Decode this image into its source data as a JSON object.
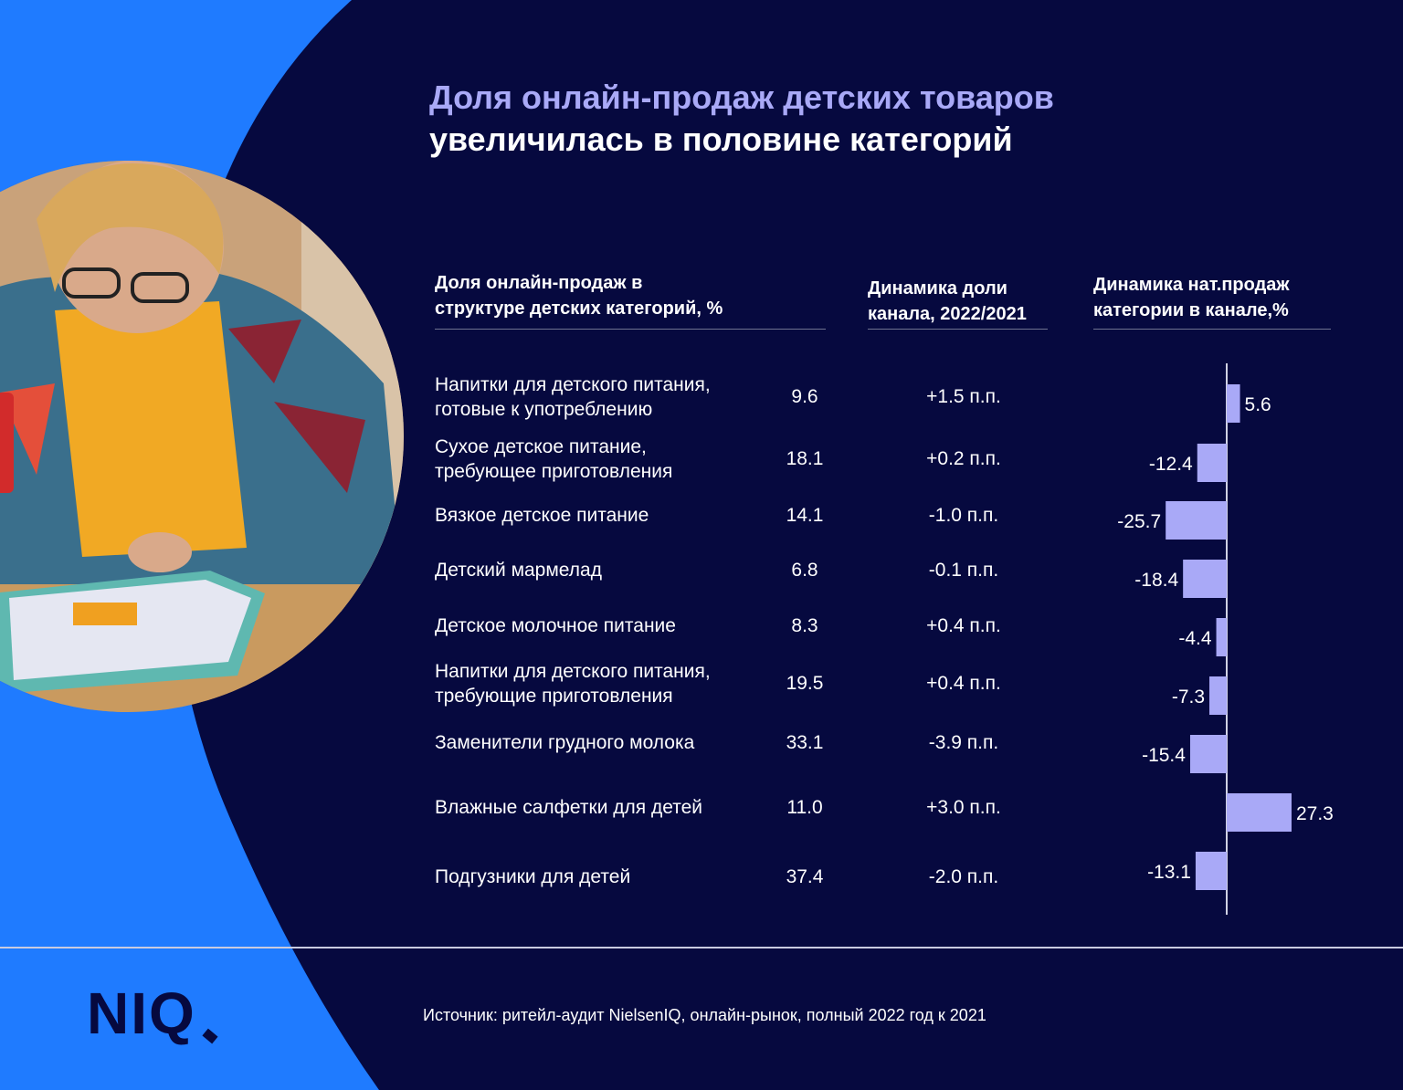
{
  "title": {
    "line1": "Доля онлайн-продаж детских товаров",
    "line2": "увеличилась в половине категорий"
  },
  "columns": {
    "share_header_line1": "Доля онлайн-продаж в",
    "share_header_line2": "структуре детских категорий, %",
    "dyn_header_line1": "Динамика доли",
    "dyn_header_line2": "канала, 2022/2021",
    "sales_header_line1": "Динамика нат.продаж",
    "sales_header_line2": "категории в канале,%"
  },
  "rows": [
    {
      "cat1": "Напитки для детского питания,",
      "cat2": "готовые к употреблению",
      "share": "9.6",
      "dyn": "+1.5 п.п."
    },
    {
      "cat1": "Сухое детское питание,",
      "cat2": "требующее приготовления",
      "share": "18.1",
      "dyn": "+0.2 п.п."
    },
    {
      "cat1": "Вязкое детское питание",
      "cat2": "",
      "share": "14.1",
      "dyn": "-1.0 п.п."
    },
    {
      "cat1": "Детский мармелад",
      "cat2": "",
      "share": "6.8",
      "dyn": "-0.1 п.п."
    },
    {
      "cat1": "Детское молочное питание",
      "cat2": "",
      "share": "8.3",
      "dyn": "+0.4 п.п."
    },
    {
      "cat1": "Напитки для детского питания,",
      "cat2": "требующие приготовления",
      "share": "19.5",
      "dyn": "+0.4 п.п."
    },
    {
      "cat1": "Заменители грудного молока",
      "cat2": "",
      "share": "33.1",
      "dyn": "-3.9  п.п."
    },
    {
      "cat1": "Влажные салфетки для детей",
      "cat2": "",
      "share": "11.0",
      "dyn": "+3.0 п.п."
    },
    {
      "cat1": "Подгузники для детей",
      "cat2": "",
      "share": "37.4",
      "dyn": "-2.0 п.п."
    }
  ],
  "chart_data": {
    "type": "bar",
    "orientation": "horizontal",
    "categories": [
      "Напитки для детского питания, готовые к употреблению",
      "Сухое детское питание, требующее приготовления",
      "Вязкое детское питание",
      "Детский мармелад",
      "Детское молочное питание",
      "Напитки для детского питания, требующие приготовления",
      "Заменители грудного молока",
      "Влажные салфетки для детей",
      "Подгузники для детей"
    ],
    "values": [
      5.6,
      -12.4,
      -25.7,
      -18.4,
      -4.4,
      -7.3,
      -15.4,
      27.3,
      -13.1
    ],
    "labels": [
      "5.6",
      "-12.4",
      "-25.7",
      "-18.4",
      "-4.4",
      "-7.3",
      "-15.4",
      "27.3",
      "-13.1"
    ],
    "xlim": [
      -27.3,
      27.3
    ],
    "grid": false,
    "bar_color": "#a9a9f7"
  },
  "footer": {
    "logo": "NIQ",
    "source": "Источник: ритейл-аудит NielsenIQ, онлайн-рынок, полный 2022 год к 2021"
  },
  "colors": {
    "background": "#06093f",
    "accent_blue": "#1f7bff",
    "title_accent": "#a9a9f7"
  }
}
